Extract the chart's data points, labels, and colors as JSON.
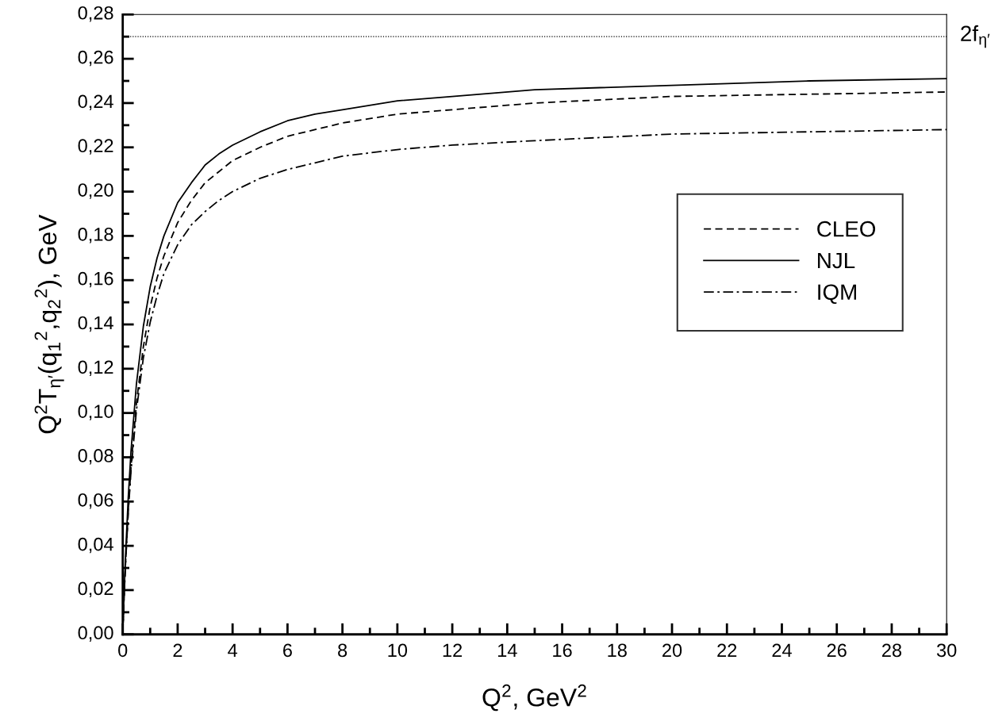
{
  "chart_data": {
    "type": "line",
    "xlabel": "Q$^{2}$, GeV$^{2}$",
    "ylabel": "Q$^{2}$T$_{η′}$(q$_{1}$$^{2}$,q$_{2}$$^{2}$), GeV",
    "x": [
      0,
      0.05,
      0.1,
      0.2,
      0.3,
      0.5,
      0.75,
      1,
      1.25,
      1.5,
      2,
      2.5,
      3,
      3.5,
      4,
      5,
      6,
      7,
      8,
      10,
      12,
      15,
      20,
      25,
      30
    ],
    "series": [
      {
        "name": "CLEO",
        "color": "#000000",
        "line_style": "dashed",
        "values": [
          0,
          0.0167,
          0.0314,
          0.0558,
          0.0753,
          0.1046,
          0.1298,
          0.148,
          0.161,
          0.171,
          0.186,
          0.196,
          0.204,
          0.209,
          0.214,
          0.22,
          0.225,
          0.228,
          0.231,
          0.235,
          0.237,
          0.24,
          0.243,
          0.244,
          0.245
        ]
      },
      {
        "name": "NJL",
        "color": "#000000",
        "line_style": "solid",
        "values": [
          0,
          0.0188,
          0.0351,
          0.0617,
          0.0826,
          0.1133,
          0.1391,
          0.157,
          0.17,
          0.18,
          0.195,
          0.204,
          0.212,
          0.217,
          0.221,
          0.227,
          0.232,
          0.235,
          0.237,
          0.241,
          0.243,
          0.246,
          0.248,
          0.25,
          0.251
        ]
      },
      {
        "name": "IQM",
        "color": "#000000",
        "line_style": "dashdot",
        "values": [
          0,
          0.0166,
          0.0311,
          0.0548,
          0.0736,
          0.1013,
          0.1248,
          0.141,
          0.153,
          0.163,
          0.176,
          0.185,
          0.191,
          0.196,
          0.2,
          0.206,
          0.21,
          0.213,
          0.216,
          0.219,
          0.221,
          0.223,
          0.226,
          0.227,
          0.228
        ]
      }
    ],
    "ref_lines": [
      {
        "axis": "y",
        "value": 0.27,
        "label": "2f$_{η′}$",
        "color": "#000000",
        "line_style": "dotted"
      }
    ],
    "xlim": [
      0,
      30
    ],
    "xticks": [
      0,
      2,
      4,
      6,
      8,
      10,
      12,
      14,
      16,
      18,
      20,
      22,
      24,
      26,
      28,
      30
    ],
    "ylim": [
      0,
      0.28
    ],
    "yticks": [
      {
        "value": 0,
        "label": "0,00"
      },
      {
        "value": 0.02,
        "label": "0,02"
      },
      {
        "value": 0.04,
        "label": "0,04"
      },
      {
        "value": 0.06,
        "label": "0,06"
      },
      {
        "value": 0.08,
        "label": "0,08"
      },
      {
        "value": 0.1,
        "label": "0,10"
      },
      {
        "value": 0.12,
        "label": "0,12"
      },
      {
        "value": 0.14,
        "label": "0,14"
      },
      {
        "value": 0.16,
        "label": "0,16"
      },
      {
        "value": 0.18,
        "label": "0,18"
      },
      {
        "value": 0.2,
        "label": "0,20"
      },
      {
        "value": 0.22,
        "label": "0,22"
      },
      {
        "value": 0.24,
        "label": "0,24"
      },
      {
        "value": 0.26,
        "label": "0,26"
      },
      {
        "value": 0.28,
        "label": "0,28"
      }
    ],
    "grid": false,
    "legend": "right",
    "marker": "none"
  }
}
